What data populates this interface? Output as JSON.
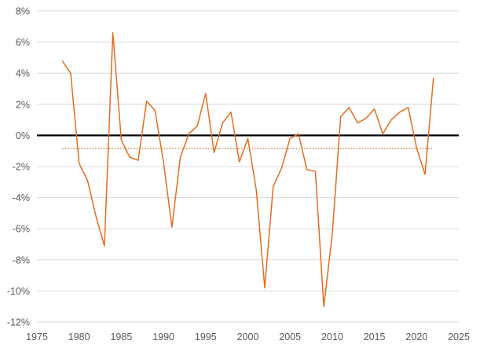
{
  "chart_data": {
    "type": "line",
    "title": "",
    "xlabel": "",
    "ylabel": "",
    "xlim": [
      1975,
      2025
    ],
    "ylim": [
      -12,
      8
    ],
    "x_ticks": [
      "1975",
      "1980",
      "1985",
      "1990",
      "1995",
      "2000",
      "2005",
      "2010",
      "2015",
      "2020",
      "2025"
    ],
    "y_ticks": [
      "8%",
      "6%",
      "4%",
      "2%",
      "0%",
      "-2%",
      "-4%",
      "-6%",
      "-8%",
      "-10%",
      "-12%"
    ],
    "grid": "horizontal",
    "zero_line": 0,
    "series": [
      {
        "color": "#E46C1E",
        "style": "solid",
        "x": [
          1978,
          1979,
          1980,
          1981,
          1982,
          1983,
          1984,
          1985,
          1986,
          1987,
          1988,
          1989,
          1990,
          1991,
          1992,
          1993,
          1994,
          1995,
          1996,
          1997,
          1998,
          1999,
          2000,
          2001,
          2002,
          2003,
          2004,
          2005,
          2006,
          2007,
          2008,
          2009,
          2010,
          2011,
          2012,
          2013,
          2014,
          2015,
          2016,
          2017,
          2018,
          2019,
          2020,
          2021,
          2022
        ],
        "values": [
          4.8,
          4.0,
          -1.8,
          -2.9,
          -5.2,
          -7.1,
          6.6,
          -0.3,
          -1.4,
          -1.6,
          2.2,
          1.6,
          -1.7,
          -5.9,
          -1.4,
          0.1,
          0.6,
          2.7,
          -1.1,
          0.8,
          1.5,
          -1.7,
          -0.2,
          -3.5,
          -9.8,
          -3.3,
          -2.1,
          -0.2,
          0.1,
          -2.2,
          -2.3,
          -11.0,
          -6.4,
          1.2,
          1.8,
          0.8,
          1.1,
          1.7,
          0.1,
          1.0,
          1.5,
          1.8,
          -0.8,
          -2.5,
          3.7
        ]
      },
      {
        "color": "#E46C1E",
        "style": "dotted",
        "x": [
          1978,
          2022
        ],
        "values": [
          -0.85,
          -0.85
        ]
      }
    ]
  }
}
